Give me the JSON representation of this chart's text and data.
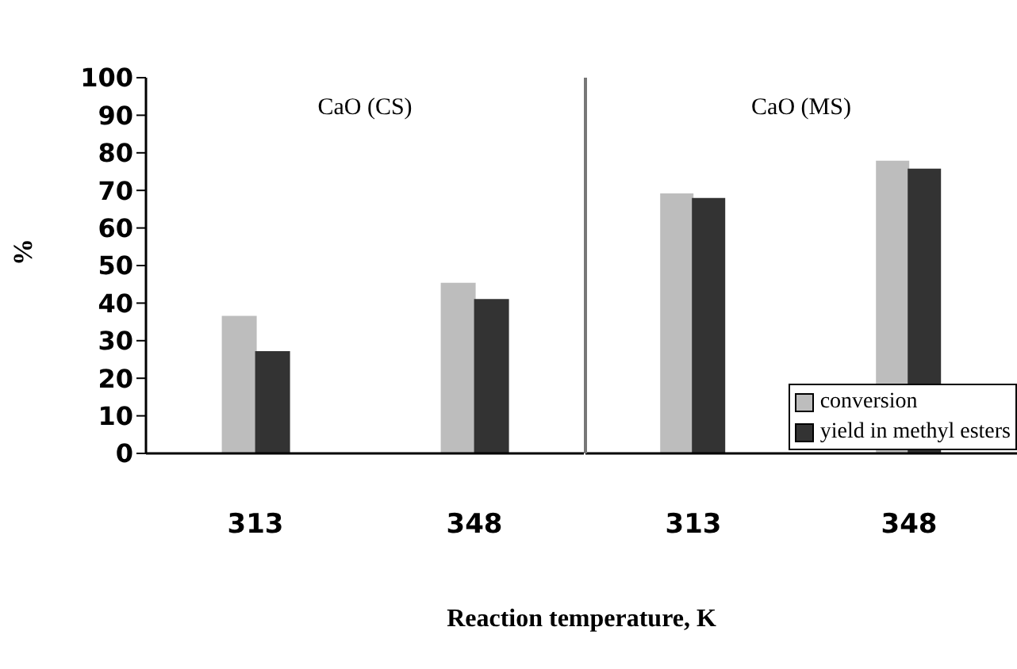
{
  "chart_data": [
    {
      "type": "bar",
      "title": "CaO (CS)",
      "xlabel": "Reaction temperature, K",
      "ylabel": "%",
      "categories": [
        "313",
        "348"
      ],
      "series": [
        {
          "color": "#bdbdbd",
          "values": [
            36.4,
            45.2
          ]
        },
        {
          "color": "#333333",
          "values": [
            27.0,
            40.9
          ]
        }
      ],
      "ylim": [
        0,
        100
      ],
      "yticks": [
        0,
        10,
        20,
        30,
        40,
        50,
        60,
        70,
        80,
        90,
        100
      ],
      "legend": false
    },
    {
      "type": "bar",
      "title": "CaO (MS)",
      "categories": [
        "313",
        "348"
      ],
      "series": [
        {
          "name": "conversion",
          "color": "#bdbdbd",
          "values": [
            69.0,
            77.7
          ]
        },
        {
          "name": "yield in methyl esters",
          "color": "#333333",
          "values": [
            67.8,
            75.6
          ]
        }
      ],
      "ylim": [
        0,
        100
      ],
      "yticks": [
        0,
        10,
        20,
        30,
        40,
        50,
        60,
        70,
        80,
        90,
        100
      ],
      "tick_labels": "x",
      "legend": "bottom right"
    }
  ]
}
